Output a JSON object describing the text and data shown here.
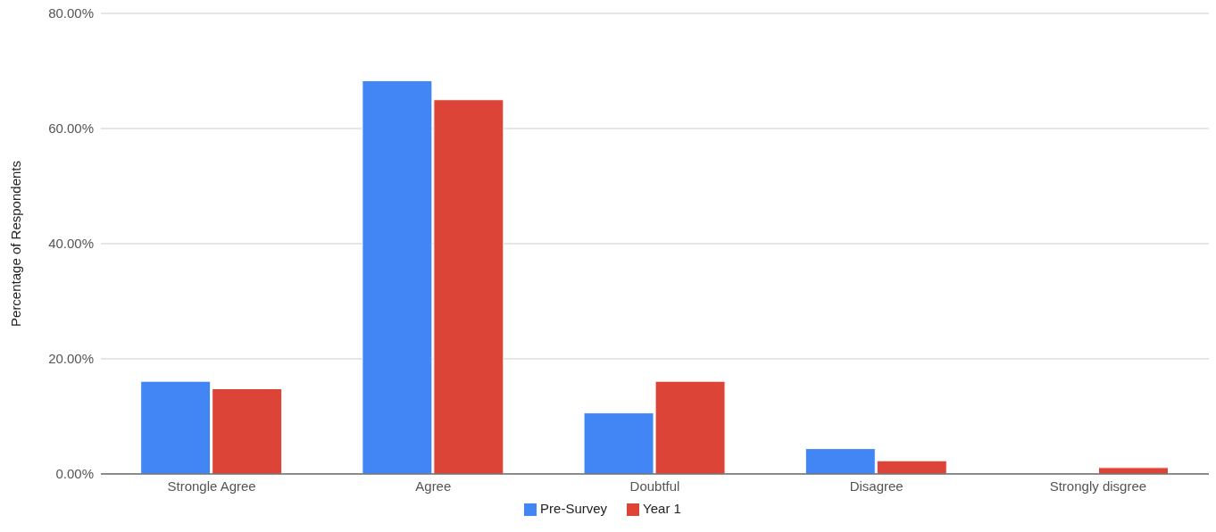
{
  "chart_data": {
    "type": "bar",
    "ylabel": "Percentage of Respondents",
    "categories": [
      "Strongle Agree",
      "Agree",
      "Doubtful",
      "Disagree",
      "Strongly disgree"
    ],
    "series": [
      {
        "name": "Pre-Survey",
        "color": "#4285f4",
        "values": [
          16.1,
          68.3,
          10.6,
          4.4,
          0
        ]
      },
      {
        "name": "Year 1",
        "color": "#db4437",
        "values": [
          14.8,
          65.0,
          16.1,
          2.3,
          1.1
        ]
      }
    ],
    "ylim": [
      0,
      80
    ],
    "yticks": [
      {
        "value": 0,
        "label": "0.00%"
      },
      {
        "value": 20,
        "label": "20.00%"
      },
      {
        "value": 40,
        "label": "40.00%"
      },
      {
        "value": 60,
        "label": "60.00%"
      },
      {
        "value": 80,
        "label": "80.00%"
      }
    ],
    "grid": "y",
    "legend": "bottom"
  }
}
